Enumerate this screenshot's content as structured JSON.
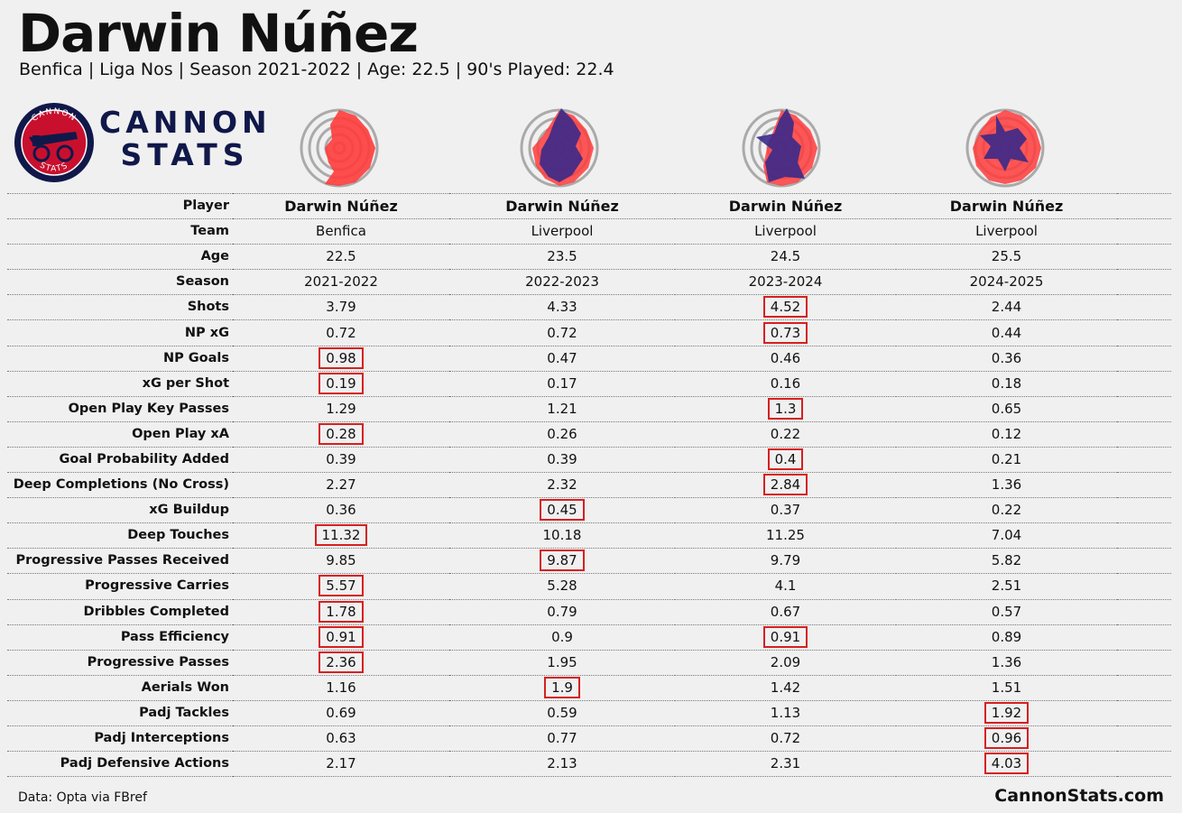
{
  "header": {
    "title": "Darwin Núñez",
    "subtitle": "Benfica | Liga Nos | Season 2021-2022 | Age: 22.5 | 90's Played: 22.4"
  },
  "brand": {
    "name_line1": "CANNON",
    "name_line2": "STATS",
    "logo_ring_top": "CANNON",
    "logo_ring_bottom": "STATS",
    "colors": {
      "navy": "#10184a",
      "red": "#c8102e",
      "highlight": "#d62020",
      "radar_red": "#ff3b3b",
      "radar_blue": "#3a2a8a"
    }
  },
  "table": {
    "rows": [
      {
        "label": "Player",
        "values": [
          "Darwin Núñez",
          "Darwin Núñez",
          "Darwin Núñez",
          "Darwin Núñez"
        ],
        "kind": "name"
      },
      {
        "label": "Team",
        "values": [
          "Benfica",
          "Liverpool",
          "Liverpool",
          "Liverpool"
        ]
      },
      {
        "label": "Age",
        "values": [
          "22.5",
          "23.5",
          "24.5",
          "25.5"
        ]
      },
      {
        "label": "Season",
        "values": [
          "2021-2022",
          "2022-2023",
          "2023-2024",
          "2024-2025"
        ]
      },
      {
        "label": "Shots",
        "values": [
          "3.79",
          "4.33",
          "4.52",
          "2.44"
        ],
        "best": 2
      },
      {
        "label": "NP xG",
        "values": [
          "0.72",
          "0.72",
          "0.73",
          "0.44"
        ],
        "best": 2
      },
      {
        "label": "NP Goals",
        "values": [
          "0.98",
          "0.47",
          "0.46",
          "0.36"
        ],
        "best": 0
      },
      {
        "label": "xG per Shot",
        "values": [
          "0.19",
          "0.17",
          "0.16",
          "0.18"
        ],
        "best": 0
      },
      {
        "label": "Open Play Key Passes",
        "values": [
          "1.29",
          "1.21",
          "1.3",
          "0.65"
        ],
        "best": 2
      },
      {
        "label": "Open Play xA",
        "values": [
          "0.28",
          "0.26",
          "0.22",
          "0.12"
        ],
        "best": 0
      },
      {
        "label": "Goal Probability Added",
        "values": [
          "0.39",
          "0.39",
          "0.4",
          "0.21"
        ],
        "best": 2
      },
      {
        "label": "Deep Completions (No Cross)",
        "values": [
          "2.27",
          "2.32",
          "2.84",
          "1.36"
        ],
        "best": 2
      },
      {
        "label": "xG Buildup",
        "values": [
          "0.36",
          "0.45",
          "0.37",
          "0.22"
        ],
        "best": 1
      },
      {
        "label": "Deep Touches",
        "values": [
          "11.32",
          "10.18",
          "11.25",
          "7.04"
        ],
        "best": 0
      },
      {
        "label": "Progressive Passes Received",
        "values": [
          "9.85",
          "9.87",
          "9.79",
          "5.82"
        ],
        "best": 1
      },
      {
        "label": "Progressive Carries",
        "values": [
          "5.57",
          "5.28",
          "4.1",
          "2.51"
        ],
        "best": 0
      },
      {
        "label": "Dribbles Completed",
        "values": [
          "1.78",
          "0.79",
          "0.67",
          "0.57"
        ],
        "best": 0
      },
      {
        "label": "Pass Efficiency",
        "values": [
          "0.91",
          "0.9",
          "0.91",
          "0.89"
        ],
        "best": [
          0,
          2
        ]
      },
      {
        "label": "Progressive Passes",
        "values": [
          "2.36",
          "1.95",
          "2.09",
          "1.36"
        ],
        "best": 0
      },
      {
        "label": "Aerials Won",
        "values": [
          "1.16",
          "1.9",
          "1.42",
          "1.51"
        ],
        "best": 1
      },
      {
        "label": "Padj Tackles",
        "values": [
          "0.69",
          "0.59",
          "1.13",
          "1.92"
        ],
        "best": 3
      },
      {
        "label": "Padj Interceptions",
        "values": [
          "0.63",
          "0.77",
          "0.72",
          "0.96"
        ],
        "best": 3
      },
      {
        "label": "Padj Defensive Actions",
        "values": [
          "2.17",
          "2.13",
          "2.31",
          "4.03"
        ],
        "best": 3
      }
    ]
  },
  "footer": {
    "source": "Data: Opta via FBref",
    "site": "CannonStats.com"
  }
}
